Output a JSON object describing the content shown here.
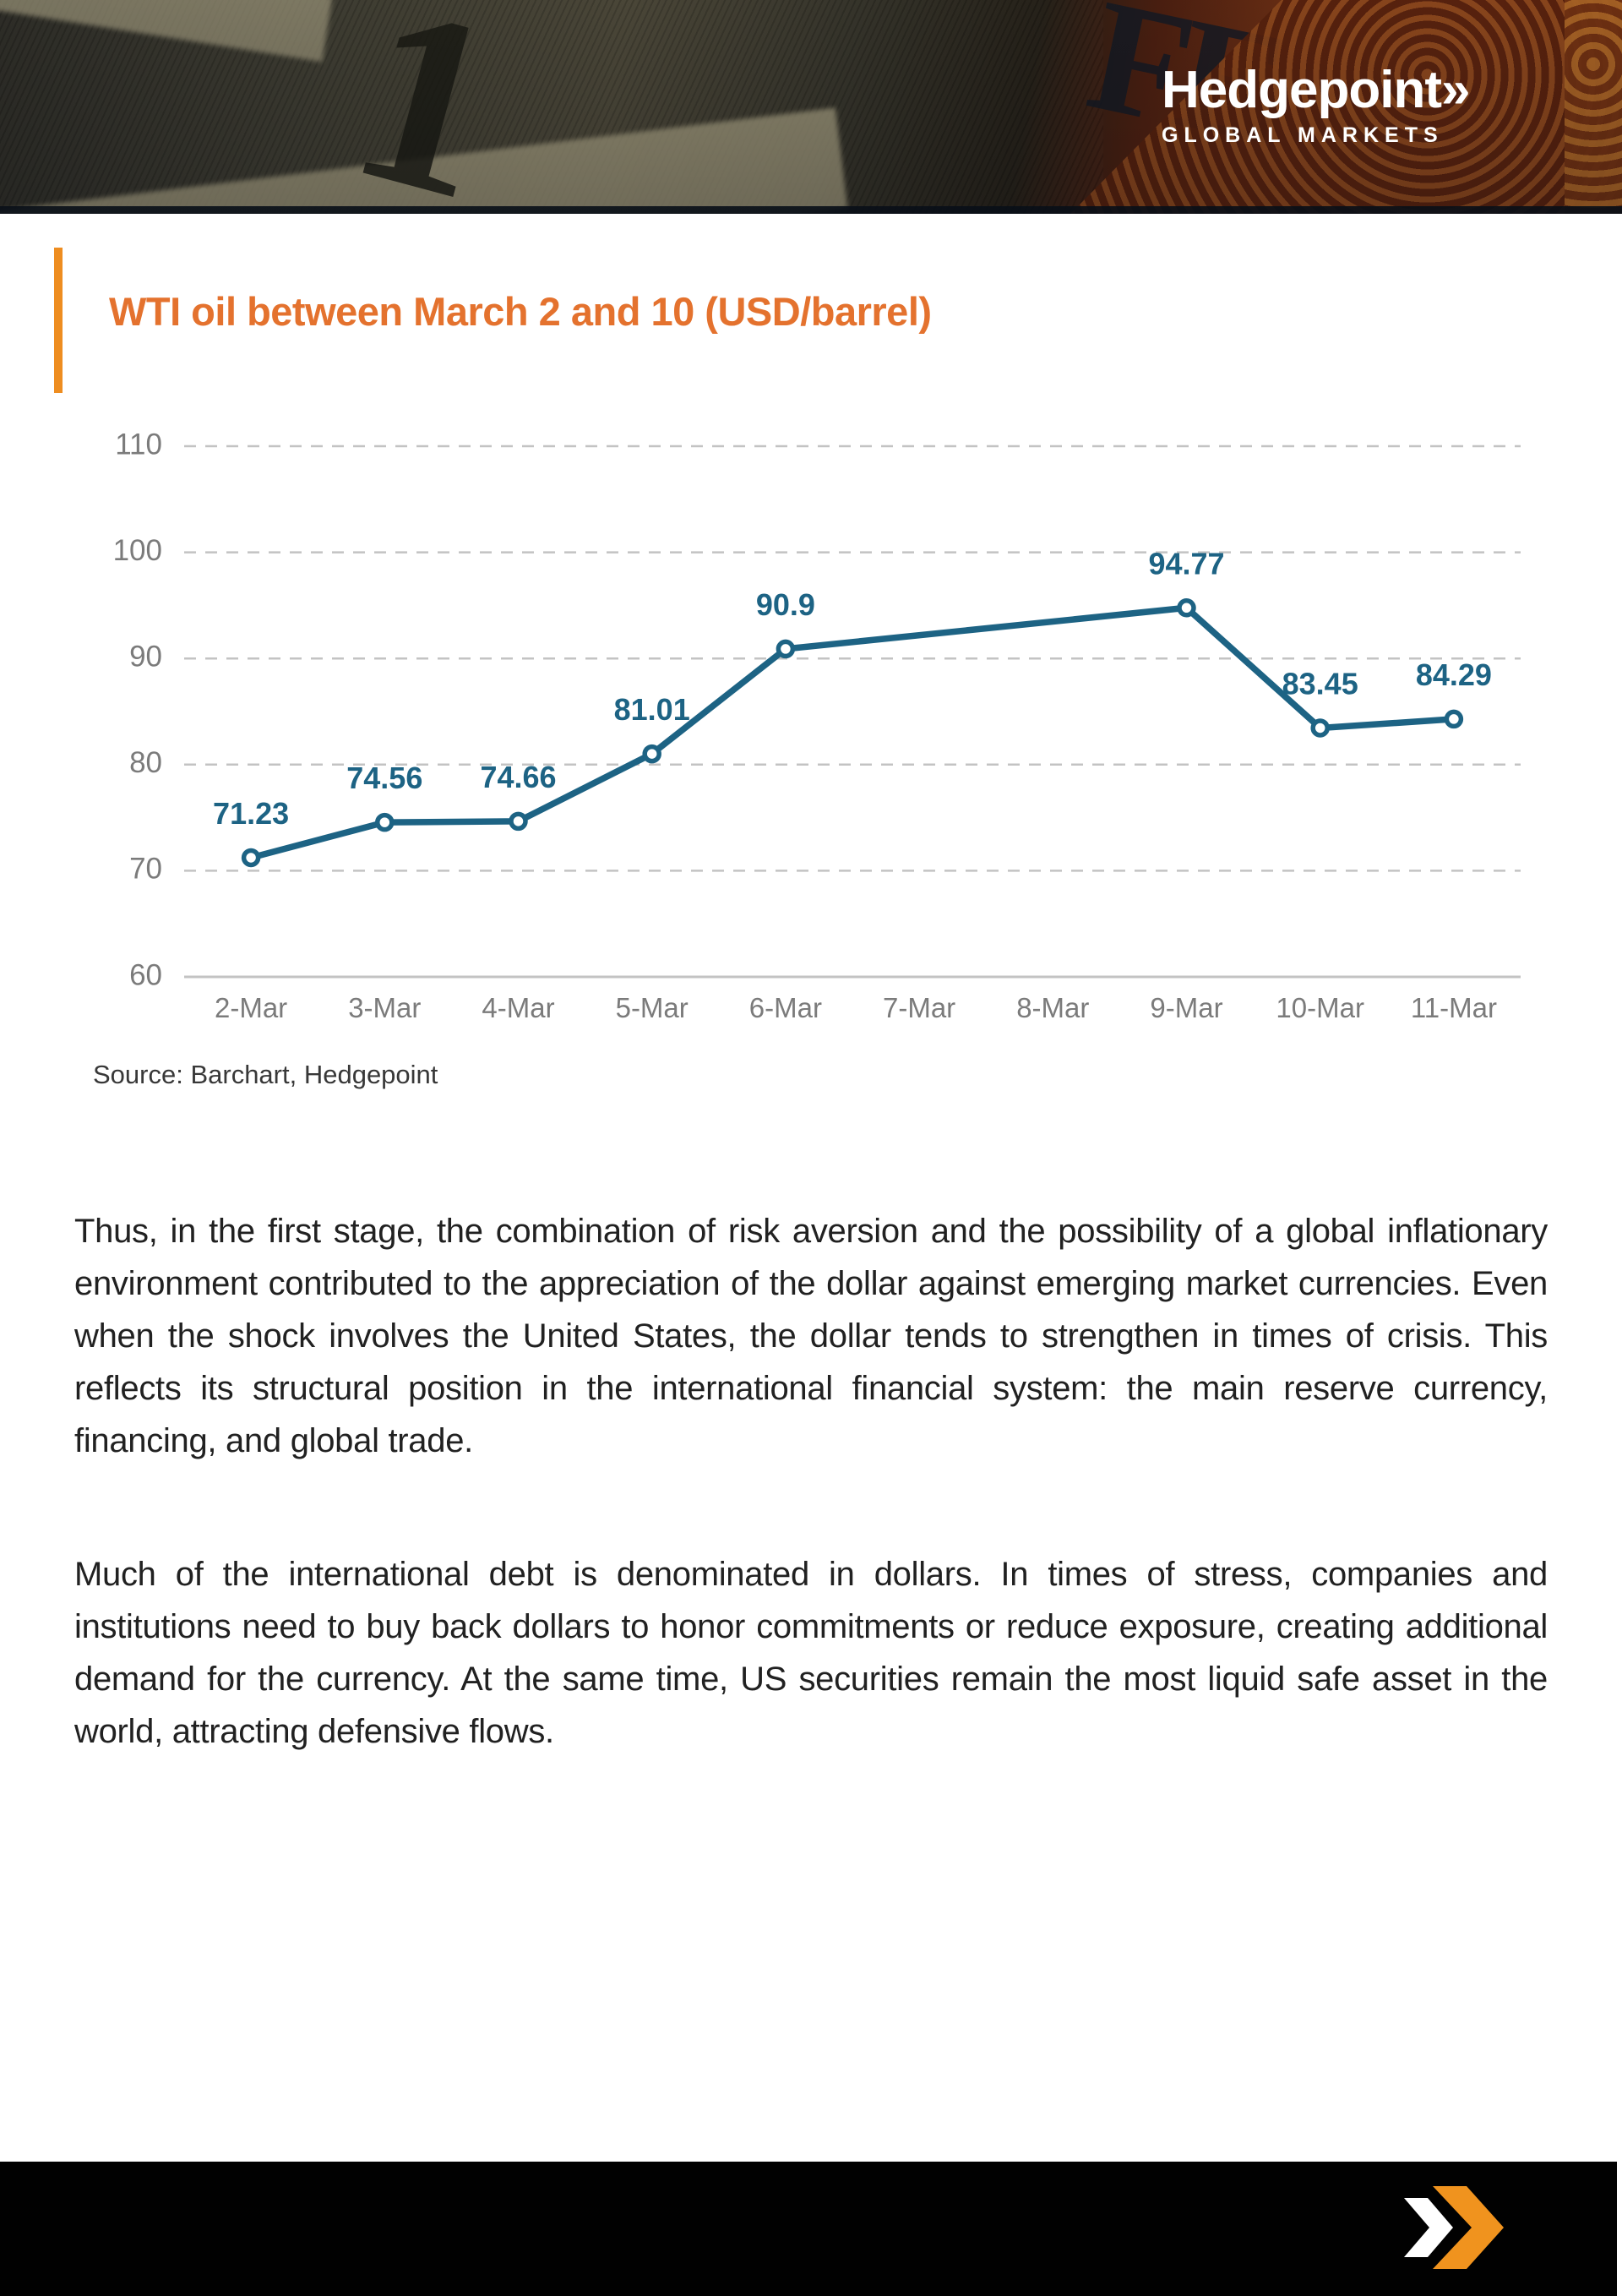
{
  "header": {
    "logo": {
      "name": "Hedgepoint",
      "mark": "»",
      "subtitle": "GLOBAL MARKETS",
      "color": "#ffffff"
    }
  },
  "title": {
    "text": "WTI oil between March 2 and 10 (USD/barrel)",
    "color": "#e4722e",
    "accent_bar_color": "#ee8d20"
  },
  "chart_data": {
    "type": "line",
    "title": "WTI oil between March 2 and 10 (USD/barrel)",
    "categories": [
      "2-Mar",
      "3-Mar",
      "4-Mar",
      "5-Mar",
      "6-Mar",
      "7-Mar",
      "8-Mar",
      "9-Mar",
      "10-Mar",
      "11-Mar"
    ],
    "series": [
      {
        "name": "WTI (USD/barrel)",
        "values": [
          71.23,
          74.56,
          74.66,
          81.01,
          90.9,
          null,
          null,
          94.77,
          83.45,
          84.29
        ]
      }
    ],
    "ylim": [
      60,
      110
    ],
    "yticks": [
      60,
      70,
      80,
      90,
      100,
      110
    ],
    "grid": "horizontal-dashed",
    "legend": "none",
    "line_color": "#1d6384",
    "marker": "white-circle-outlined",
    "data_label_color": "#1d6384",
    "axis_text_color": "#7b7b7b",
    "grid_color": "#c3c3c3"
  },
  "source": {
    "text": "Source: Barchart, Hedgepoint"
  },
  "body": {
    "paragraphs": [
      "Thus, in the first stage, the combination of risk aversion and the possibility of a global inflationary environment contributed to the appreciation of the dollar against emerging market currencies. Even when the shock involves the United States, the dollar tends to strengthen in times of crisis. This reflects its structural position in the international financial system: the main reserve currency, financing, and global trade.",
      "Much of the international debt is denominated in dollars. In times of stress, companies and institutions need to buy back dollars to honor commitments or reduce exposure, creating additional demand for the currency. At the same time, US securities remain the most liquid safe asset in the world, attracting defensive flows."
    ]
  },
  "footer": {
    "background": "#010101",
    "chevron": {
      "front_color": "#f0931e",
      "back_color": "#ffffff"
    }
  }
}
